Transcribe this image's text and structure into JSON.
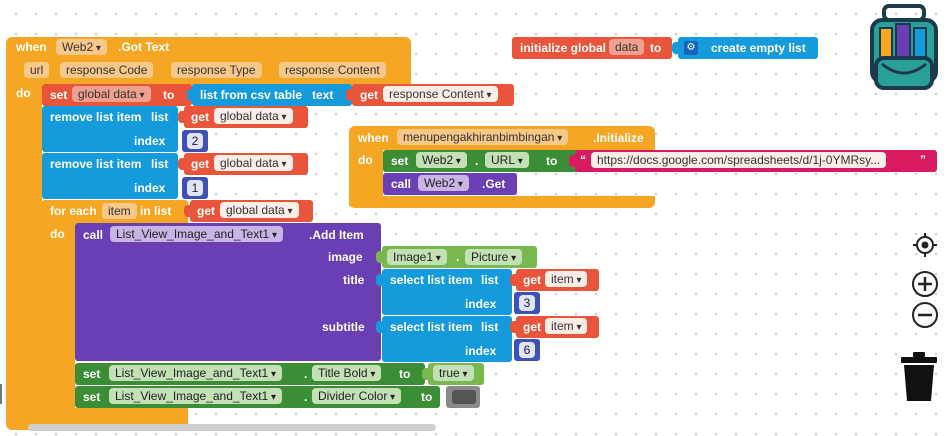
{
  "when_block": {
    "when": "when",
    "component": "Web2",
    "event": ".Got Text",
    "params": [
      "url",
      "response Code",
      "response Type",
      "response Content"
    ],
    "do": "do"
  },
  "set_data": {
    "set": "set",
    "var": "global data",
    "to": "to",
    "list_from_csv": "list from csv table",
    "text": "text",
    "get": "get",
    "get_var": "response Content"
  },
  "remove1": {
    "label": "remove list item",
    "list": "list",
    "get": "get",
    "var": "global data",
    "index": "index",
    "num": "2"
  },
  "remove2": {
    "label": "remove list item",
    "list": "list",
    "get": "get",
    "var": "global data",
    "index": "index",
    "num": "1"
  },
  "foreach": {
    "for_each": "for each",
    "item": "item",
    "in_list": "in list",
    "get": "get",
    "var": "global data",
    "do": "do"
  },
  "call_add": {
    "call": "call",
    "component": "List_View_Image_and_Text1",
    "method": ".Add Item",
    "image": "image",
    "img_comp": "Image1",
    "img_prop": "Picture",
    "title": "title",
    "subtitle": "subtitle",
    "select": "select list item",
    "list": "list",
    "get": "get",
    "item": "item",
    "index": "index",
    "title_index": "3",
    "subtitle_index": "6"
  },
  "set_title_bold": {
    "set": "set",
    "component": "List_View_Image_and_Text1",
    "prop": "Title Bold",
    "to": "to",
    "value": "true"
  },
  "set_divider": {
    "set": "set",
    "component": "List_View_Image_and_Text1",
    "prop": "Divider Color",
    "to": "to",
    "color": "#555555"
  },
  "init_global": {
    "label": "initialize global",
    "name": "data",
    "to": "to",
    "value": "create empty list"
  },
  "init_screen": {
    "when": "when",
    "screen": "menupengakhiranbimbingan",
    "event": ".Initialize",
    "do": "do",
    "set": "set",
    "component": "Web2",
    "prop": "URL",
    "to": "to",
    "url": "https://docs.google.com/spreadsheets/d/1j-0YMRsy...",
    "call": "call",
    "call_comp": "Web2",
    "call_method": ".Get"
  },
  "colors": {
    "event": "#f5a623",
    "variable": "#e8553a",
    "list": "#159bdc",
    "math": "#3f51b5",
    "component": "#6a3fb4",
    "setter": "#3b8e36",
    "text": "#d81b60"
  },
  "icons": [
    "backpack-icon",
    "target-icon",
    "zoom-in-icon",
    "zoom-out-icon",
    "trash-icon"
  ]
}
